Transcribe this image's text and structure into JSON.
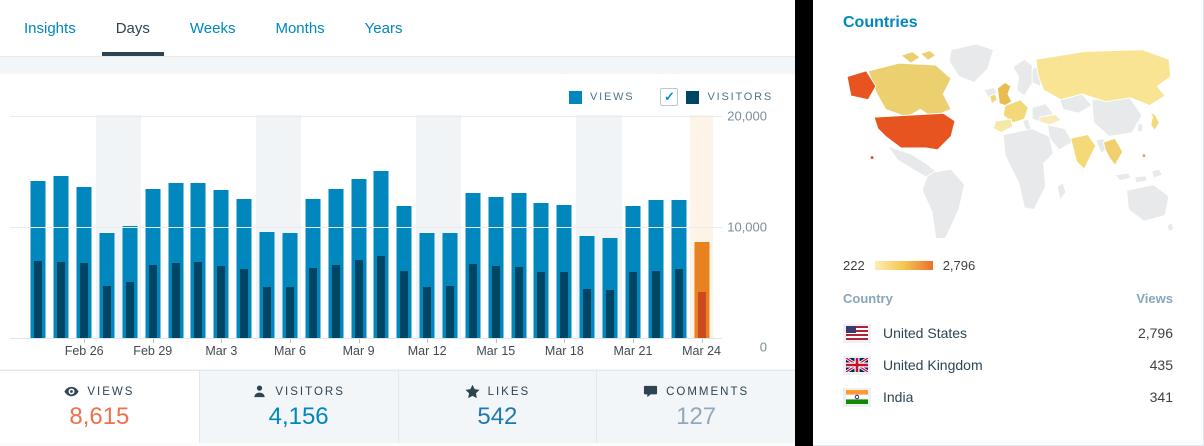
{
  "tabs": {
    "items": [
      {
        "label": "Insights",
        "active": false
      },
      {
        "label": "Days",
        "active": true
      },
      {
        "label": "Weeks",
        "active": false
      },
      {
        "label": "Months",
        "active": false
      },
      {
        "label": "Years",
        "active": false
      }
    ]
  },
  "legend": {
    "views_label": "VIEWS",
    "visitors_label": "VISITORS",
    "views_color": "#0087be",
    "visitors_color": "#004664",
    "visitors_checkbox_checked": true,
    "checkmark": "✓"
  },
  "chart_data": {
    "type": "bar",
    "title": "Daily views and visitors",
    "categories": [
      "Feb 24",
      "Feb 25",
      "Feb 26",
      "Feb 27",
      "Feb 28",
      "Feb 29",
      "Mar 1",
      "Mar 2",
      "Mar 3",
      "Mar 4",
      "Mar 5",
      "Mar 6",
      "Mar 7",
      "Mar 8",
      "Mar 9",
      "Mar 10",
      "Mar 11",
      "Mar 12",
      "Mar 13",
      "Mar 14",
      "Mar 15",
      "Mar 16",
      "Mar 17",
      "Mar 18",
      "Mar 19",
      "Mar 20",
      "Mar 21",
      "Mar 22",
      "Mar 23",
      "Mar 24"
    ],
    "series": [
      {
        "name": "Views",
        "color": "#0087be",
        "today_color": "#e8821e",
        "values": [
          14100,
          14600,
          13600,
          9400,
          10100,
          13400,
          13900,
          13900,
          13300,
          12500,
          9500,
          9400,
          12500,
          13400,
          14300,
          15000,
          11900,
          9400,
          9400,
          13000,
          12700,
          13000,
          12100,
          12000,
          9200,
          9000,
          11900,
          12400,
          12400,
          8615
        ]
      },
      {
        "name": "Visitors",
        "color": "#004664",
        "today_color": "#cc4a1f",
        "values": [
          6900,
          6800,
          6700,
          4700,
          5000,
          6600,
          6700,
          6800,
          6500,
          6200,
          4600,
          4600,
          6300,
          6600,
          7000,
          7400,
          6000,
          4600,
          4700,
          6650,
          6450,
          6400,
          5900,
          5900,
          4450,
          4300,
          5900,
          6000,
          6250,
          4156
        ]
      }
    ],
    "weekend_indices": [
      3,
      4,
      10,
      11,
      17,
      18,
      24,
      25
    ],
    "today_index": 29,
    "weekend_band_color": "#f0f4f7",
    "today_band_color": "#fdf3e6",
    "x_tick_indices": [
      2,
      5,
      8,
      11,
      14,
      17,
      20,
      23,
      26,
      29
    ],
    "x_tick_labels": [
      "Feb 26",
      "Feb 29",
      "Mar 3",
      "Mar 6",
      "Mar 9",
      "Mar 12",
      "Mar 15",
      "Mar 18",
      "Mar 21",
      "Mar 24"
    ],
    "y_ticks": [
      {
        "label": "20,000",
        "value": 20000
      },
      {
        "label": "10,000",
        "value": 10000
      },
      {
        "label": "0",
        "value": 0
      }
    ],
    "ylim": [
      0,
      20500
    ],
    "grid": "horizontal",
    "legend_position": "top-right"
  },
  "summary": {
    "items": [
      {
        "label": "VIEWS",
        "value": "8,615",
        "icon": "eye-icon",
        "active": true,
        "value_color": "#f0704e"
      },
      {
        "label": "VISITORS",
        "value": "4,156",
        "icon": "person-icon",
        "active": false,
        "value_color": "#0087be"
      },
      {
        "label": "LIKES",
        "value": "542",
        "icon": "star-icon",
        "active": false,
        "value_color": "#1c7ab0"
      },
      {
        "label": "COMMENTS",
        "value": "127",
        "icon": "comment-icon",
        "active": false,
        "value_color": "#93a8ba"
      }
    ]
  },
  "countries": {
    "title": "Countries",
    "scale": {
      "min": "222",
      "max": "2,796"
    },
    "map_colors": {
      "base": "#e8e9ea",
      "low": "#f8e493",
      "mid": "#eccf6f",
      "high": "#e75420"
    },
    "table": {
      "headers": [
        "Country",
        "Views"
      ],
      "rows": [
        {
          "flag": "us-flag",
          "country": "United States",
          "views": "2,796"
        },
        {
          "flag": "uk-flag",
          "country": "United Kingdom",
          "views": "435"
        },
        {
          "flag": "in-flag",
          "country": "India",
          "views": "341"
        }
      ]
    }
  }
}
